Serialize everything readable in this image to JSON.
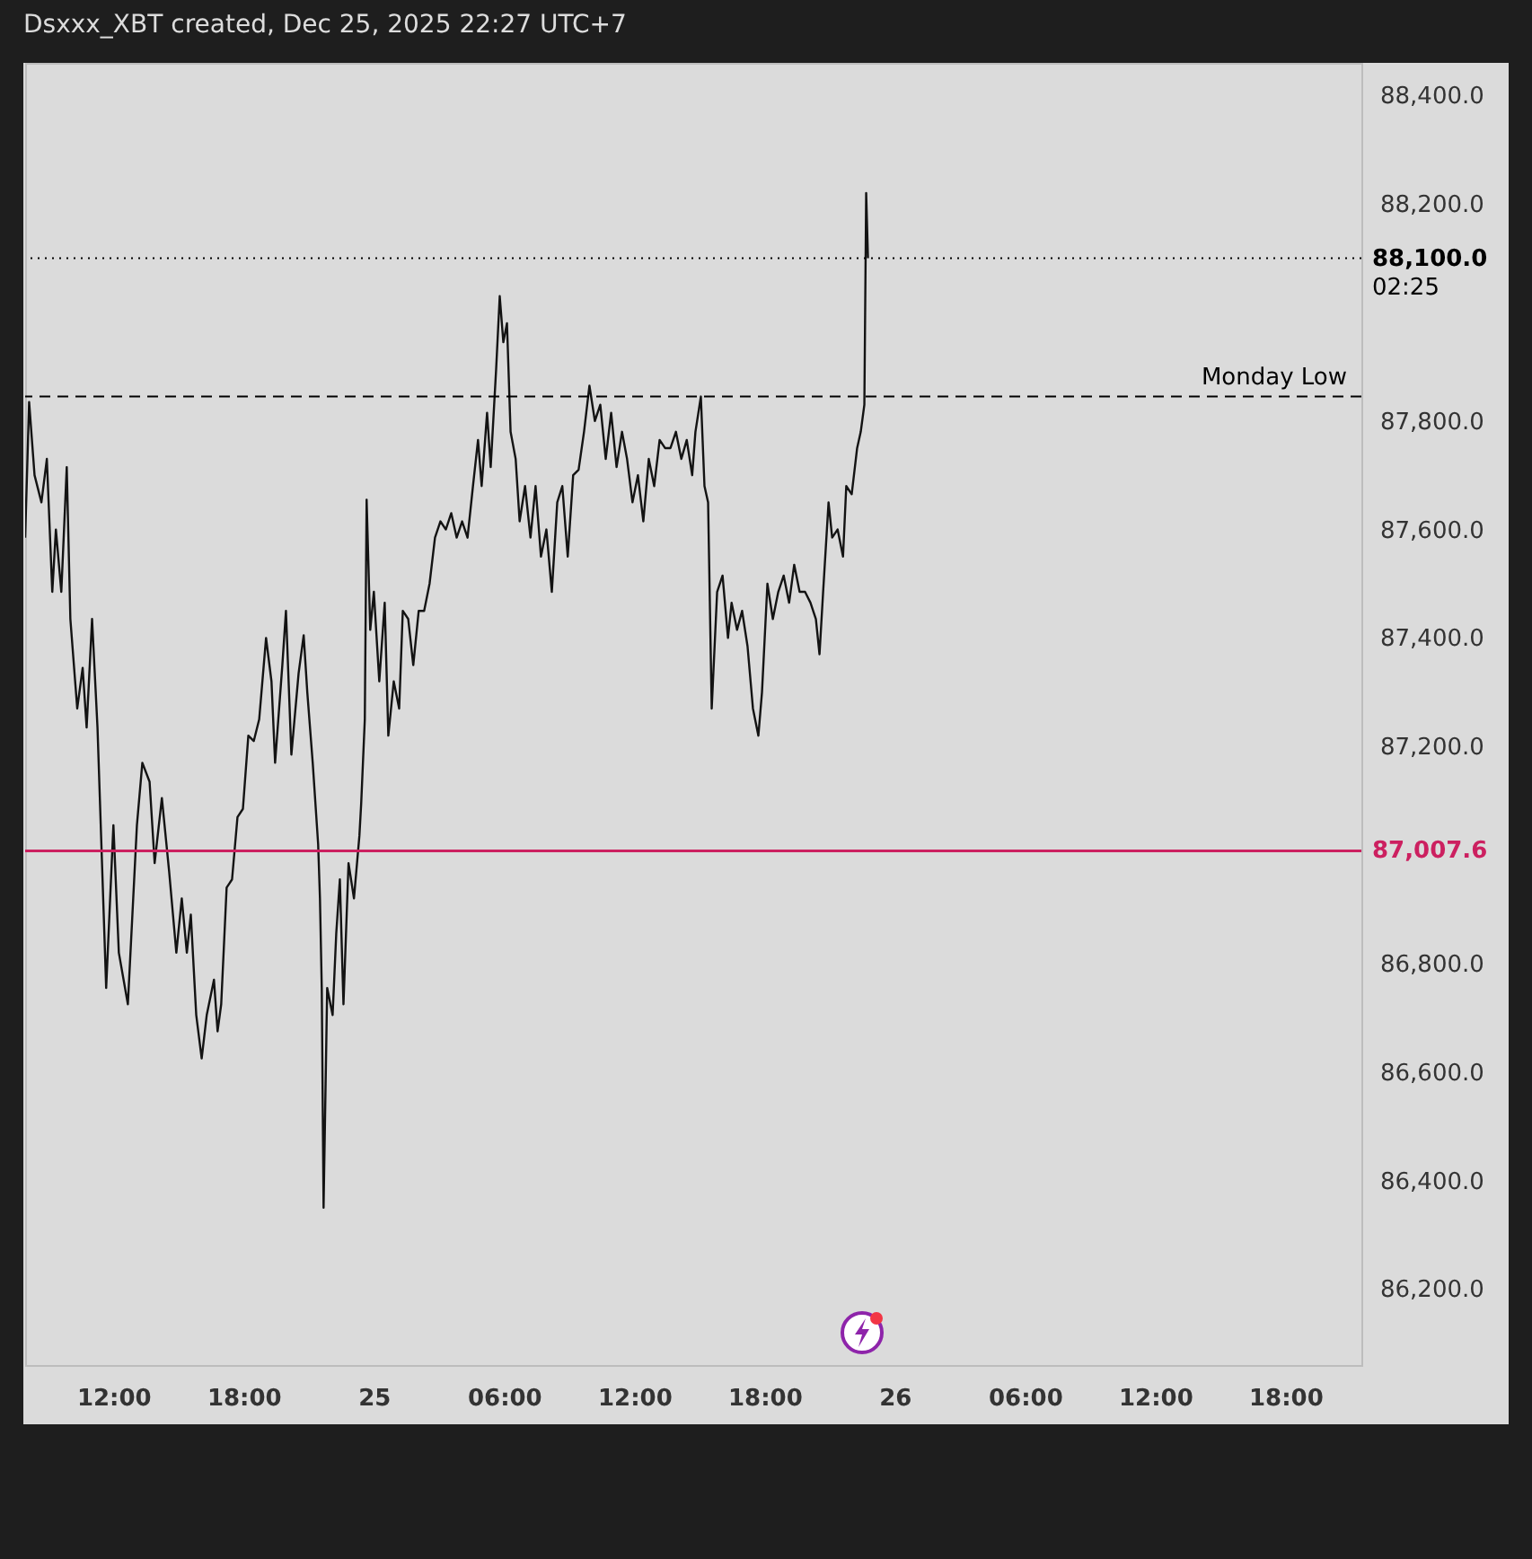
{
  "chart_data": {
    "type": "line",
    "title": "Dsxxx_XBT created, Dec 25, 2025 22:27 UTC+7",
    "xlim": [
      "2025-12-24T07:56",
      "2025-12-26T21:30"
    ],
    "xticks": [
      {
        "value": "2025-12-24T12:00",
        "label": "12:00"
      },
      {
        "value": "2025-12-24T18:00",
        "label": "18:00"
      },
      {
        "value": "2025-12-25T00:00",
        "label": "25"
      },
      {
        "value": "2025-12-25T06:00",
        "label": "06:00"
      },
      {
        "value": "2025-12-25T12:00",
        "label": "12:00"
      },
      {
        "value": "2025-12-25T18:00",
        "label": "18:00"
      },
      {
        "value": "2025-12-26T00:00",
        "label": "26"
      },
      {
        "value": "2025-12-26T06:00",
        "label": "06:00"
      },
      {
        "value": "2025-12-26T12:00",
        "label": "12:00"
      },
      {
        "value": "2025-12-26T18:00",
        "label": "18:00"
      }
    ],
    "ylim": [
      86060,
      88460
    ],
    "yticks": [
      {
        "value": 86200,
        "label": "86,200.0"
      },
      {
        "value": 86400,
        "label": "86,400.0"
      },
      {
        "value": 86600,
        "label": "86,600.0"
      },
      {
        "value": 86800,
        "label": "86,800.0"
      },
      {
        "value": 87200,
        "label": "87,200.0"
      },
      {
        "value": 87400,
        "label": "87,400.0"
      },
      {
        "value": 87600,
        "label": "87,600.0"
      },
      {
        "value": 87800,
        "label": "87,800.0"
      },
      {
        "value": 88200,
        "label": "88,200.0"
      },
      {
        "value": 88400,
        "label": "88,400.0"
      }
    ],
    "marker": "none",
    "line_style": "solid",
    "ref_lines": [
      {
        "axis": "y",
        "value": 88100,
        "label": "88,100.0",
        "color": "#000000",
        "line_style": "dotted"
      },
      {
        "axis": "y",
        "value": 87845,
        "label": "Monday Low",
        "color": "#000000",
        "line_style": "dashed"
      },
      {
        "axis": "y",
        "value": 87007.6,
        "label": "87,007.6",
        "color": "#cc2060",
        "line_style": "solid"
      }
    ],
    "annotations": [
      "02:25"
    ],
    "series": [
      {
        "color": "#131313",
        "x": [
          "2025-12-24T07:56",
          "2025-12-24T08:07",
          "2025-12-24T08:22",
          "2025-12-24T08:41",
          "2025-12-24T08:56",
          "2025-12-24T09:11",
          "2025-12-24T09:21",
          "2025-12-24T09:36",
          "2025-12-24T09:51",
          "2025-12-24T10:01",
          "2025-12-24T10:20",
          "2025-12-24T10:35",
          "2025-12-24T10:46",
          "2025-12-24T11:01",
          "2025-12-24T11:16",
          "2025-12-24T11:40",
          "2025-12-24T12:00",
          "2025-12-24T12:15",
          "2025-12-24T12:40",
          "2025-12-24T13:05",
          "2025-12-24T13:20",
          "2025-12-24T13:40",
          "2025-12-24T13:54",
          "2025-12-24T14:14",
          "2025-12-24T14:34",
          "2025-12-24T14:54",
          "2025-12-24T15:09",
          "2025-12-24T15:23",
          "2025-12-24T15:34",
          "2025-12-24T15:49",
          "2025-12-24T16:04",
          "2025-12-24T16:18",
          "2025-12-24T16:38",
          "2025-12-24T16:48",
          "2025-12-24T16:58",
          "2025-12-24T17:13",
          "2025-12-24T17:28",
          "2025-12-24T17:43",
          "2025-12-24T17:58",
          "2025-12-24T18:13",
          "2025-12-24T18:28",
          "2025-12-24T18:43",
          "2025-12-24T19:02",
          "2025-12-24T19:17",
          "2025-12-24T19:27",
          "2025-12-24T19:47",
          "2025-12-24T19:57",
          "2025-12-24T20:12",
          "2025-12-24T20:32",
          "2025-12-24T20:46",
          "2025-12-24T20:56",
          "2025-12-24T21:11",
          "2025-12-24T21:26",
          "2025-12-24T21:31",
          "2025-12-24T21:36",
          "2025-12-24T21:41",
          "2025-12-24T21:51",
          "2025-12-24T22:06",
          "2025-12-24T22:16",
          "2025-12-24T22:26",
          "2025-12-24T22:36",
          "2025-12-24T22:50",
          "2025-12-24T23:05",
          "2025-12-24T23:20",
          "2025-12-24T23:25",
          "2025-12-24T23:35",
          "2025-12-24T23:40",
          "2025-12-24T23:50",
          "2025-12-25T00:00",
          "2025-12-25T00:15",
          "2025-12-25T00:30",
          "2025-12-25T00:40",
          "2025-12-25T00:55",
          "2025-12-25T01:10",
          "2025-12-25T01:20",
          "2025-12-25T01:35",
          "2025-12-25T01:49",
          "2025-12-25T02:04",
          "2025-12-25T02:19",
          "2025-12-25T02:34",
          "2025-12-25T02:49",
          "2025-12-25T03:04",
          "2025-12-25T03:19",
          "2025-12-25T03:34",
          "2025-12-25T03:49",
          "2025-12-25T04:04",
          "2025-12-25T04:19",
          "2025-12-25T04:34",
          "2025-12-25T04:48",
          "2025-12-25T04:58",
          "2025-12-25T05:13",
          "2025-12-25T05:23",
          "2025-12-25T05:38",
          "2025-12-25T05:48",
          "2025-12-25T05:58",
          "2025-12-25T06:08",
          "2025-12-25T06:18",
          "2025-12-25T06:32",
          "2025-12-25T06:43",
          "2025-12-25T06:58",
          "2025-12-25T07:13",
          "2025-12-25T07:27",
          "2025-12-25T07:42",
          "2025-12-25T07:57",
          "2025-12-25T08:12",
          "2025-12-25T08:27",
          "2025-12-25T08:41",
          "2025-12-25T08:56",
          "2025-12-25T09:11",
          "2025-12-25T09:26",
          "2025-12-25T09:41",
          "2025-12-25T09:56",
          "2025-12-25T10:11",
          "2025-12-25T10:26",
          "2025-12-25T10:41",
          "2025-12-25T10:56",
          "2025-12-25T11:11",
          "2025-12-25T11:26",
          "2025-12-25T11:40",
          "2025-12-25T11:55",
          "2025-12-25T12:10",
          "2025-12-25T12:25",
          "2025-12-25T12:40",
          "2025-12-25T12:55",
          "2025-12-25T13:10",
          "2025-12-25T13:25",
          "2025-12-25T13:40",
          "2025-12-25T13:55",
          "2025-12-25T14:10",
          "2025-12-25T14:25",
          "2025-12-25T14:40",
          "2025-12-25T14:49",
          "2025-12-25T15:04",
          "2025-12-25T15:14",
          "2025-12-25T15:24",
          "2025-12-25T15:34",
          "2025-12-25T15:49",
          "2025-12-25T16:04",
          "2025-12-25T16:19",
          "2025-12-25T16:29",
          "2025-12-25T16:44",
          "2025-12-25T16:58",
          "2025-12-25T17:13",
          "2025-12-25T17:28",
          "2025-12-25T17:43",
          "2025-12-25T17:53",
          "2025-12-25T18:08",
          "2025-12-25T18:23",
          "2025-12-25T18:38",
          "2025-12-25T18:53",
          "2025-12-25T19:08",
          "2025-12-25T19:22",
          "2025-12-25T19:37",
          "2025-12-25T19:52",
          "2025-12-25T20:07",
          "2025-12-25T20:22",
          "2025-12-25T20:32",
          "2025-12-25T20:42",
          "2025-12-25T20:57",
          "2025-12-25T21:07",
          "2025-12-25T21:22",
          "2025-12-25T21:37",
          "2025-12-25T21:46",
          "2025-12-25T22:01",
          "2025-12-25T22:16",
          "2025-12-25T22:26",
          "2025-12-25T22:36",
          "2025-12-25T22:41",
          "2025-12-25T22:46"
        ],
        "values": [
          87585,
          87835,
          87700,
          87650,
          87730,
          87485,
          87600,
          87485,
          87715,
          87435,
          87270,
          87345,
          87235,
          87435,
          87235,
          86755,
          87055,
          86820,
          86725,
          87055,
          87170,
          87135,
          86985,
          87105,
          86970,
          86820,
          86920,
          86820,
          86890,
          86705,
          86625,
          86705,
          86770,
          86675,
          86725,
          86940,
          86955,
          87070,
          87085,
          87220,
          87210,
          87250,
          87400,
          87320,
          87170,
          87350,
          87450,
          87185,
          87335,
          87405,
          87300,
          87170,
          87020,
          86920,
          86755,
          86350,
          86755,
          86705,
          86855,
          86955,
          86725,
          86985,
          86920,
          87035,
          87095,
          87250,
          87655,
          87415,
          87485,
          87320,
          87465,
          87220,
          87320,
          87270,
          87450,
          87435,
          87350,
          87450,
          87450,
          87500,
          87585,
          87615,
          87600,
          87630,
          87585,
          87615,
          87585,
          87680,
          87765,
          87680,
          87815,
          87715,
          87895,
          88030,
          87945,
          87980,
          87780,
          87730,
          87615,
          87680,
          87585,
          87680,
          87550,
          87600,
          87485,
          87650,
          87680,
          87550,
          87700,
          87710,
          87780,
          87865,
          87800,
          87830,
          87730,
          87815,
          87715,
          87780,
          87730,
          87650,
          87700,
          87615,
          87730,
          87680,
          87765,
          87750,
          87750,
          87780,
          87730,
          87765,
          87700,
          87780,
          87845,
          87680,
          87650,
          87270,
          87485,
          87515,
          87400,
          87465,
          87415,
          87450,
          87385,
          87270,
          87220,
          87300,
          87500,
          87435,
          87485,
          87515,
          87465,
          87535,
          87485,
          87485,
          87465,
          87435,
          87370,
          87485,
          87650,
          87585,
          87600,
          87550,
          87680,
          87665,
          87750,
          87780,
          87830,
          88220,
          88100
        ]
      }
    ]
  }
}
